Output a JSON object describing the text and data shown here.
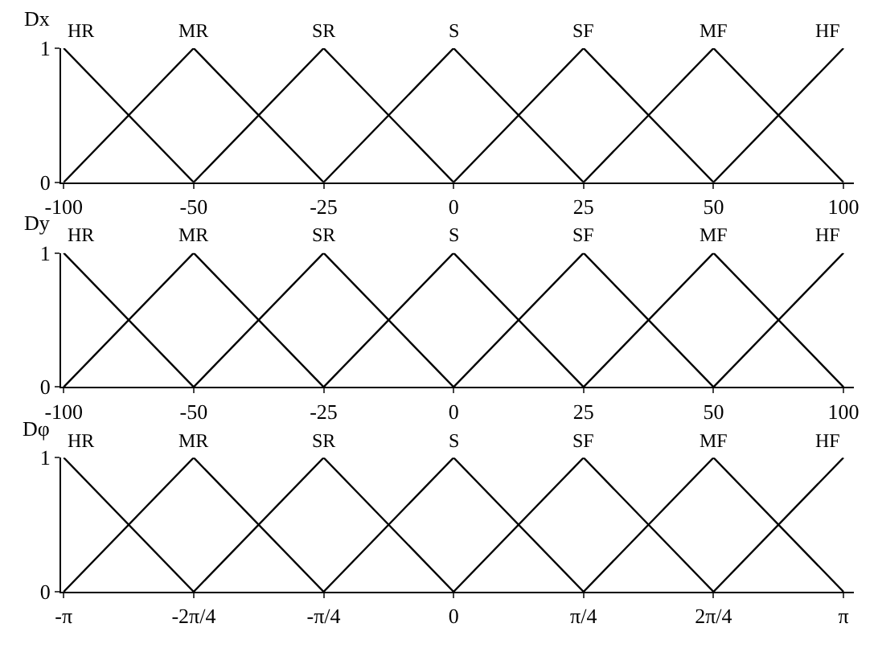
{
  "chart_data": [
    {
      "type": "line",
      "ylabel": "Dx",
      "categories": [
        "-100",
        "-50",
        "-25",
        "0",
        "25",
        "50",
        "100"
      ],
      "ylim": [
        0,
        1
      ],
      "yticks": [
        0,
        1
      ],
      "line_style": "solid",
      "series": [
        {
          "name": "HR",
          "color": "#000000",
          "values": [
            1,
            0,
            null,
            null,
            null,
            null,
            null
          ]
        },
        {
          "name": "MR",
          "color": "#000000",
          "values": [
            0,
            1,
            0,
            null,
            null,
            null,
            null
          ]
        },
        {
          "name": "SR",
          "color": "#000000",
          "values": [
            null,
            0,
            1,
            0,
            null,
            null,
            null
          ]
        },
        {
          "name": "S",
          "color": "#000000",
          "values": [
            null,
            null,
            0,
            1,
            0,
            null,
            null
          ]
        },
        {
          "name": "SF",
          "color": "#000000",
          "values": [
            null,
            null,
            null,
            0,
            1,
            0,
            null
          ]
        },
        {
          "name": "MF",
          "color": "#000000",
          "values": [
            null,
            null,
            null,
            null,
            0,
            1,
            0
          ]
        },
        {
          "name": "HF",
          "color": "#000000",
          "values": [
            null,
            null,
            null,
            null,
            null,
            0,
            1
          ]
        }
      ]
    },
    {
      "type": "line",
      "ylabel": "Dy",
      "categories": [
        "-100",
        "-50",
        "-25",
        "0",
        "25",
        "50",
        "100"
      ],
      "ylim": [
        0,
        1
      ],
      "yticks": [
        0,
        1
      ],
      "line_style": "solid",
      "series": [
        {
          "name": "HR",
          "color": "#000000",
          "values": [
            1,
            0,
            null,
            null,
            null,
            null,
            null
          ]
        },
        {
          "name": "MR",
          "color": "#000000",
          "values": [
            0,
            1,
            0,
            null,
            null,
            null,
            null
          ]
        },
        {
          "name": "SR",
          "color": "#000000",
          "values": [
            null,
            0,
            1,
            0,
            null,
            null,
            null
          ]
        },
        {
          "name": "S",
          "color": "#000000",
          "values": [
            null,
            null,
            0,
            1,
            0,
            null,
            null
          ]
        },
        {
          "name": "SF",
          "color": "#000000",
          "values": [
            null,
            null,
            null,
            0,
            1,
            0,
            null
          ]
        },
        {
          "name": "MF",
          "color": "#000000",
          "values": [
            null,
            null,
            null,
            null,
            0,
            1,
            0
          ]
        },
        {
          "name": "HF",
          "color": "#000000",
          "values": [
            null,
            null,
            null,
            null,
            null,
            0,
            1
          ]
        }
      ]
    },
    {
      "type": "line",
      "ylabel": "Dφ",
      "categories": [
        "-π",
        "-2π/4",
        "-π/4",
        "0",
        "π/4",
        "2π/4",
        "π"
      ],
      "ylim": [
        0,
        1
      ],
      "yticks": [
        0,
        1
      ],
      "line_style": "solid",
      "series": [
        {
          "name": "HR",
          "color": "#000000",
          "values": [
            1,
            0,
            null,
            null,
            null,
            null,
            null
          ]
        },
        {
          "name": "MR",
          "color": "#000000",
          "values": [
            0,
            1,
            0,
            null,
            null,
            null,
            null
          ]
        },
        {
          "name": "SR",
          "color": "#000000",
          "values": [
            null,
            0,
            1,
            0,
            null,
            null,
            null
          ]
        },
        {
          "name": "S",
          "color": "#000000",
          "values": [
            null,
            null,
            0,
            1,
            0,
            null,
            null
          ]
        },
        {
          "name": "SF",
          "color": "#000000",
          "values": [
            null,
            null,
            null,
            0,
            1,
            0,
            null
          ]
        },
        {
          "name": "MF",
          "color": "#000000",
          "values": [
            null,
            null,
            null,
            null,
            0,
            1,
            0
          ]
        },
        {
          "name": "HF",
          "color": "#000000",
          "values": [
            null,
            null,
            null,
            null,
            null,
            0,
            1
          ]
        }
      ]
    }
  ]
}
